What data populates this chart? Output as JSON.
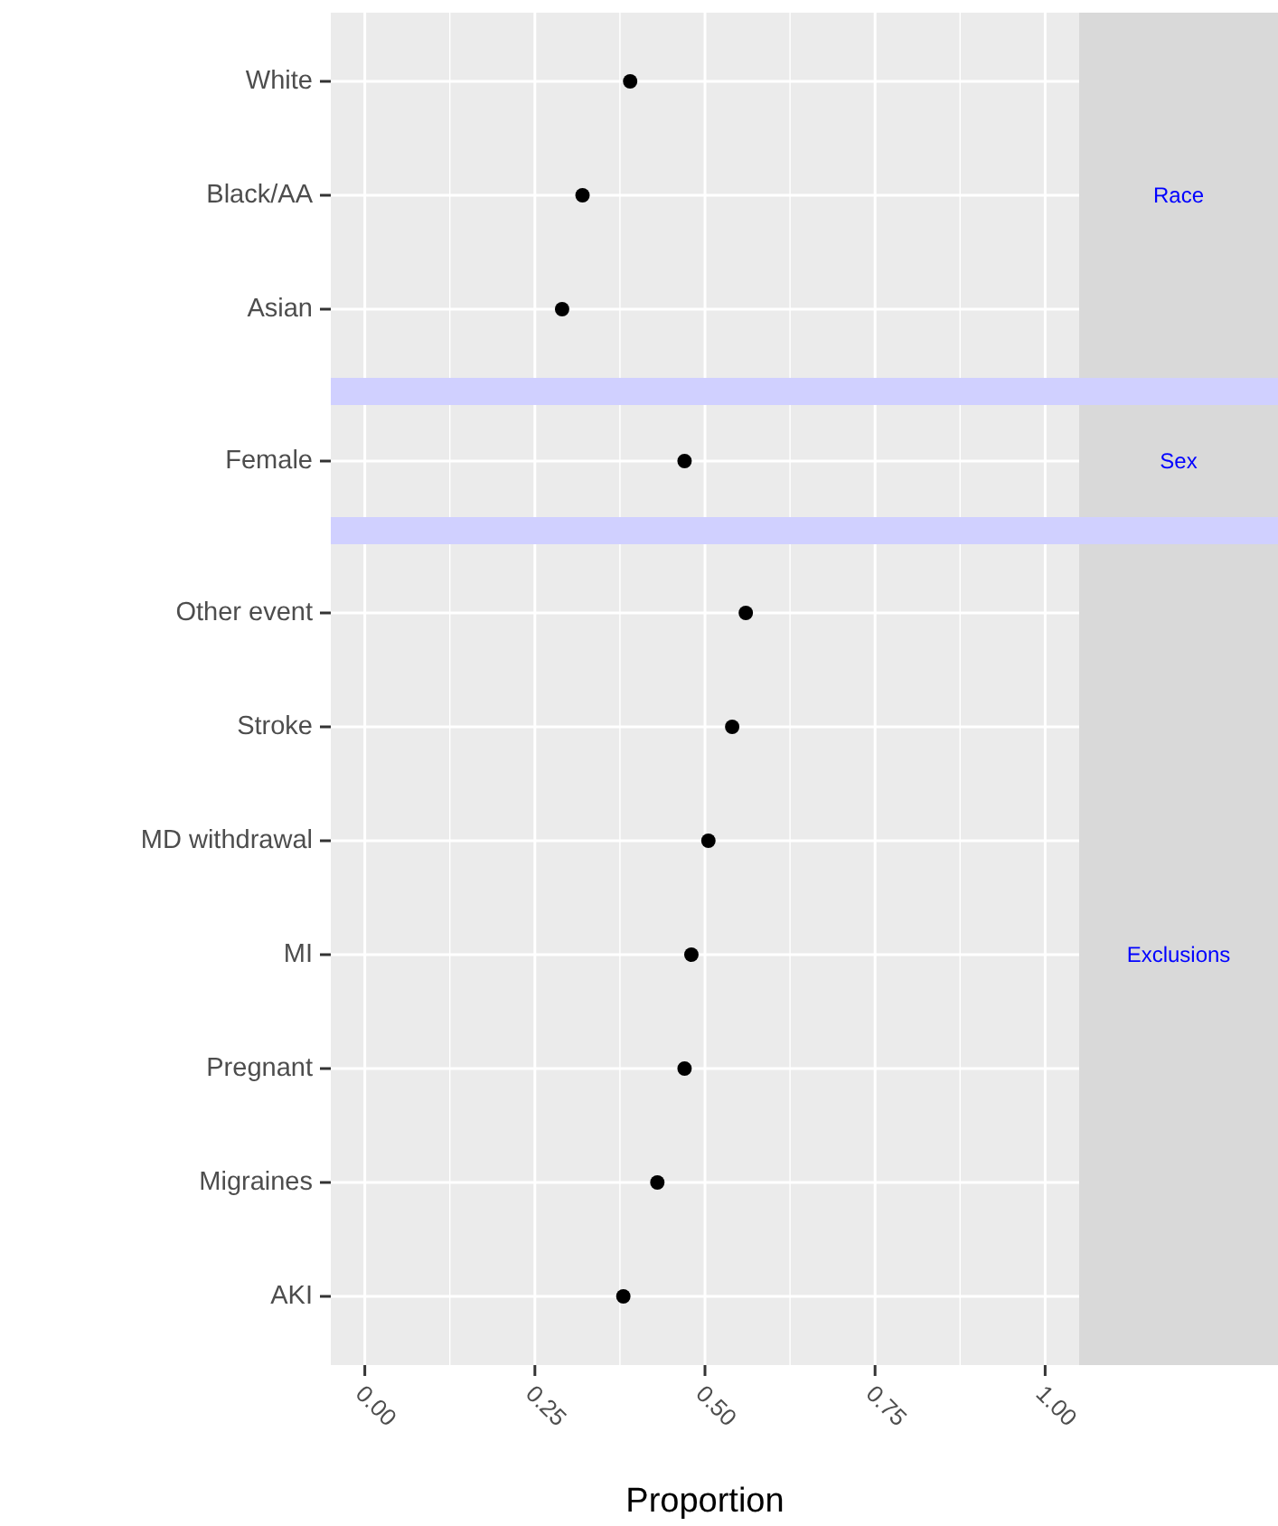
{
  "chart_data": [
    {
      "type": "scatter",
      "y2label": "Race",
      "orientation": "horizontal",
      "categories": [
        "White",
        "Black/AA",
        "Asian"
      ],
      "values": [
        0.39,
        0.32,
        0.29
      ],
      "color": "#000000",
      "marker": "circle",
      "grid": true,
      "tick_labels": "y",
      "xlim": [
        -0.05,
        1.05
      ],
      "xticks": [
        0,
        0.25,
        0.5,
        0.75,
        1
      ]
    },
    {
      "type": "scatter",
      "y2label": "Sex",
      "orientation": "horizontal",
      "categories": [
        "Female"
      ],
      "values": [
        0.47
      ],
      "color": "#000000",
      "marker": "circle",
      "grid": true,
      "tick_labels": "y",
      "xlim": [
        -0.05,
        1.05
      ],
      "xticks": [
        0,
        0.25,
        0.5,
        0.75,
        1
      ]
    },
    {
      "type": "scatter",
      "y2label": "Exclusions",
      "orientation": "horizontal",
      "xlabel": "Proportion",
      "categories": [
        "Other event",
        "Stroke",
        "MD withdrawal",
        "MI",
        "Pregnant",
        "Migraines",
        "AKI"
      ],
      "values": [
        0.56,
        0.54,
        0.505,
        0.48,
        0.47,
        0.43,
        0.38
      ],
      "color": "#000000",
      "marker": "circle",
      "grid": true,
      "xlim": [
        -0.05,
        1.05
      ],
      "xticks": [
        {
          "value": 0,
          "label": "0.00"
        },
        {
          "value": 0.25,
          "label": "0.25"
        },
        {
          "value": 0.5,
          "label": "0.50"
        },
        {
          "value": 0.75,
          "label": "0.75"
        },
        {
          "value": 1,
          "label": "1.00"
        }
      ]
    }
  ]
}
